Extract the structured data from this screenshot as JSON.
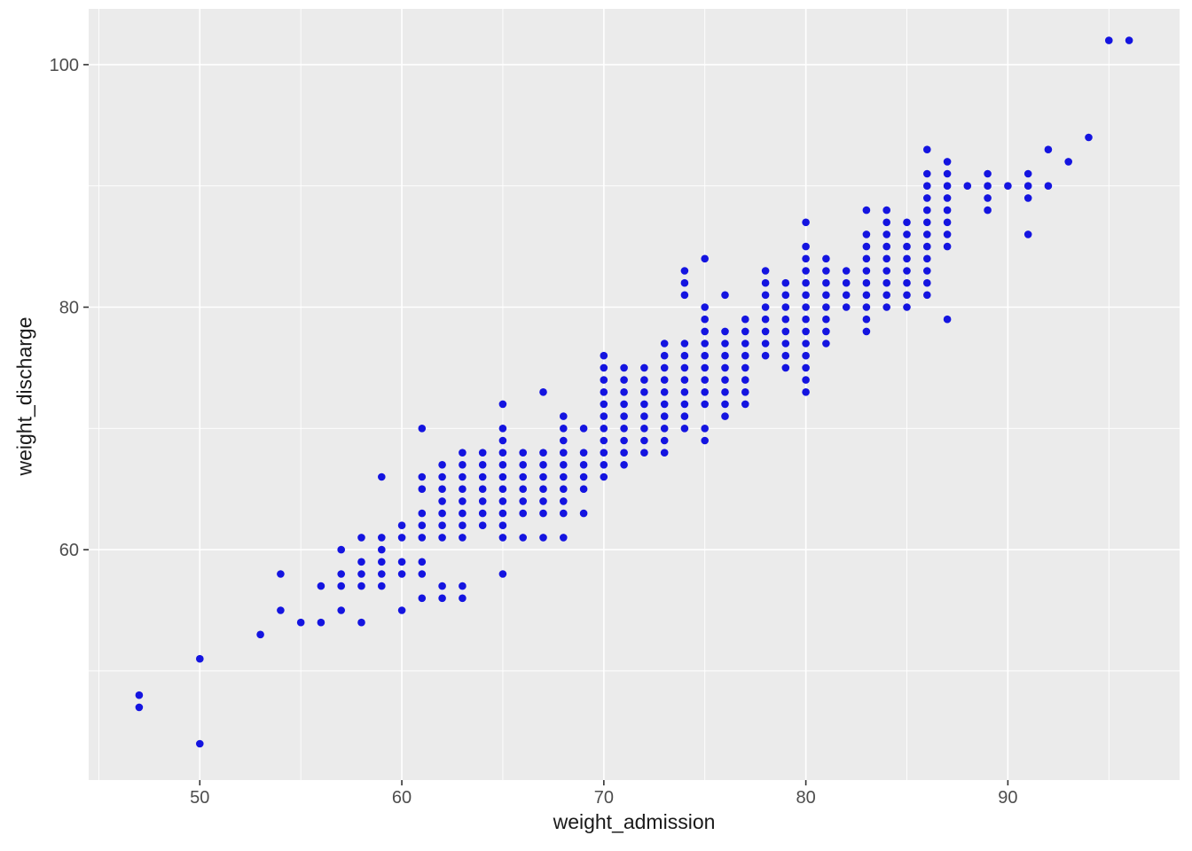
{
  "chart_data": {
    "type": "scatter",
    "title": "",
    "xlabel": "weight_admission",
    "ylabel": "weight_discharge",
    "x_ticks": [
      50,
      60,
      70,
      80,
      90
    ],
    "y_ticks": [
      60,
      80,
      100
    ],
    "x_minor_ticks": [
      45,
      55,
      65,
      75,
      85,
      95
    ],
    "y_minor_ticks": [
      50,
      70,
      90
    ],
    "xlim": [
      44.5,
      98.5
    ],
    "ylim": [
      41.0,
      104.6
    ],
    "legend": "none",
    "grid": "on",
    "panel_bg": "#EBEBEB",
    "grid_color": "#FFFFFF",
    "tick_label_color": "#4D4D4D",
    "tick_mark_color": "#333333",
    "point_color": "#1414E0",
    "points": [
      [
        47,
        48
      ],
      [
        47,
        47
      ],
      [
        50,
        51
      ],
      [
        50,
        44
      ],
      [
        53,
        53
      ],
      [
        54,
        58
      ],
      [
        54,
        55
      ],
      [
        55,
        54
      ],
      [
        56,
        57
      ],
      [
        56,
        54
      ],
      [
        57,
        60
      ],
      [
        57,
        58
      ],
      [
        57,
        57
      ],
      [
        57,
        55
      ],
      [
        58,
        61
      ],
      [
        58,
        59
      ],
      [
        58,
        58
      ],
      [
        58,
        57
      ],
      [
        58,
        54
      ],
      [
        59,
        66
      ],
      [
        59,
        61
      ],
      [
        59,
        60
      ],
      [
        59,
        59
      ],
      [
        59,
        58
      ],
      [
        59,
        57
      ],
      [
        60,
        62
      ],
      [
        60,
        61
      ],
      [
        60,
        59
      ],
      [
        60,
        58
      ],
      [
        60,
        55
      ],
      [
        61,
        70
      ],
      [
        61,
        66
      ],
      [
        61,
        65
      ],
      [
        61,
        63
      ],
      [
        61,
        62
      ],
      [
        61,
        61
      ],
      [
        61,
        59
      ],
      [
        61,
        58
      ],
      [
        61,
        56
      ],
      [
        62,
        67
      ],
      [
        62,
        66
      ],
      [
        62,
        65
      ],
      [
        62,
        64
      ],
      [
        62,
        63
      ],
      [
        62,
        62
      ],
      [
        62,
        61
      ],
      [
        62,
        57
      ],
      [
        62,
        56
      ],
      [
        63,
        68
      ],
      [
        63,
        67
      ],
      [
        63,
        66
      ],
      [
        63,
        65
      ],
      [
        63,
        64
      ],
      [
        63,
        63
      ],
      [
        63,
        62
      ],
      [
        63,
        61
      ],
      [
        63,
        57
      ],
      [
        63,
        56
      ],
      [
        64,
        68
      ],
      [
        64,
        67
      ],
      [
        64,
        66
      ],
      [
        64,
        65
      ],
      [
        64,
        64
      ],
      [
        64,
        63
      ],
      [
        64,
        62
      ],
      [
        65,
        72
      ],
      [
        65,
        70
      ],
      [
        65,
        69
      ],
      [
        65,
        68
      ],
      [
        65,
        67
      ],
      [
        65,
        66
      ],
      [
        65,
        65
      ],
      [
        65,
        64
      ],
      [
        65,
        63
      ],
      [
        65,
        62
      ],
      [
        65,
        61
      ],
      [
        65,
        58
      ],
      [
        66,
        68
      ],
      [
        66,
        67
      ],
      [
        66,
        66
      ],
      [
        66,
        65
      ],
      [
        66,
        64
      ],
      [
        66,
        63
      ],
      [
        66,
        61
      ],
      [
        67,
        73
      ],
      [
        67,
        68
      ],
      [
        67,
        67
      ],
      [
        67,
        66
      ],
      [
        67,
        65
      ],
      [
        67,
        64
      ],
      [
        67,
        63
      ],
      [
        67,
        61
      ],
      [
        68,
        71
      ],
      [
        68,
        70
      ],
      [
        68,
        69
      ],
      [
        68,
        68
      ],
      [
        68,
        67
      ],
      [
        68,
        66
      ],
      [
        68,
        65
      ],
      [
        68,
        64
      ],
      [
        68,
        63
      ],
      [
        68,
        61
      ],
      [
        69,
        70
      ],
      [
        69,
        68
      ],
      [
        69,
        67
      ],
      [
        69,
        66
      ],
      [
        69,
        65
      ],
      [
        69,
        63
      ],
      [
        70,
        76
      ],
      [
        70,
        75
      ],
      [
        70,
        74
      ],
      [
        70,
        73
      ],
      [
        70,
        72
      ],
      [
        70,
        71
      ],
      [
        70,
        70
      ],
      [
        70,
        69
      ],
      [
        70,
        68
      ],
      [
        70,
        67
      ],
      [
        70,
        66
      ],
      [
        71,
        75
      ],
      [
        71,
        74
      ],
      [
        71,
        73
      ],
      [
        71,
        72
      ],
      [
        71,
        71
      ],
      [
        71,
        70
      ],
      [
        71,
        69
      ],
      [
        71,
        68
      ],
      [
        71,
        67
      ],
      [
        72,
        75
      ],
      [
        72,
        74
      ],
      [
        72,
        73
      ],
      [
        72,
        72
      ],
      [
        72,
        71
      ],
      [
        72,
        70
      ],
      [
        72,
        69
      ],
      [
        72,
        68
      ],
      [
        73,
        77
      ],
      [
        73,
        76
      ],
      [
        73,
        75
      ],
      [
        73,
        74
      ],
      [
        73,
        73
      ],
      [
        73,
        72
      ],
      [
        73,
        71
      ],
      [
        73,
        70
      ],
      [
        73,
        69
      ],
      [
        73,
        68
      ],
      [
        74,
        83
      ],
      [
        74,
        82
      ],
      [
        74,
        81
      ],
      [
        74,
        77
      ],
      [
        74,
        76
      ],
      [
        74,
        75
      ],
      [
        74,
        74
      ],
      [
        74,
        73
      ],
      [
        74,
        72
      ],
      [
        74,
        71
      ],
      [
        74,
        70
      ],
      [
        75,
        84
      ],
      [
        75,
        80
      ],
      [
        75,
        79
      ],
      [
        75,
        78
      ],
      [
        75,
        77
      ],
      [
        75,
        76
      ],
      [
        75,
        75
      ],
      [
        75,
        74
      ],
      [
        75,
        73
      ],
      [
        75,
        72
      ],
      [
        75,
        70
      ],
      [
        75,
        69
      ],
      [
        76,
        81
      ],
      [
        76,
        78
      ],
      [
        76,
        77
      ],
      [
        76,
        76
      ],
      [
        76,
        75
      ],
      [
        76,
        74
      ],
      [
        76,
        73
      ],
      [
        76,
        72
      ],
      [
        76,
        71
      ],
      [
        77,
        79
      ],
      [
        77,
        78
      ],
      [
        77,
        77
      ],
      [
        77,
        76
      ],
      [
        77,
        75
      ],
      [
        77,
        74
      ],
      [
        77,
        73
      ],
      [
        77,
        72
      ],
      [
        78,
        83
      ],
      [
        78,
        82
      ],
      [
        78,
        81
      ],
      [
        78,
        80
      ],
      [
        78,
        79
      ],
      [
        78,
        78
      ],
      [
        78,
        77
      ],
      [
        78,
        76
      ],
      [
        79,
        82
      ],
      [
        79,
        81
      ],
      [
        79,
        80
      ],
      [
        79,
        79
      ],
      [
        79,
        78
      ],
      [
        79,
        77
      ],
      [
        79,
        76
      ],
      [
        79,
        75
      ],
      [
        80,
        87
      ],
      [
        80,
        85
      ],
      [
        80,
        84
      ],
      [
        80,
        83
      ],
      [
        80,
        82
      ],
      [
        80,
        81
      ],
      [
        80,
        80
      ],
      [
        80,
        79
      ],
      [
        80,
        78
      ],
      [
        80,
        77
      ],
      [
        80,
        76
      ],
      [
        80,
        75
      ],
      [
        80,
        74
      ],
      [
        80,
        73
      ],
      [
        81,
        84
      ],
      [
        81,
        83
      ],
      [
        81,
        82
      ],
      [
        81,
        81
      ],
      [
        81,
        80
      ],
      [
        81,
        79
      ],
      [
        81,
        78
      ],
      [
        81,
        77
      ],
      [
        82,
        83
      ],
      [
        82,
        82
      ],
      [
        82,
        81
      ],
      [
        82,
        80
      ],
      [
        83,
        88
      ],
      [
        83,
        86
      ],
      [
        83,
        85
      ],
      [
        83,
        84
      ],
      [
        83,
        83
      ],
      [
        83,
        82
      ],
      [
        83,
        81
      ],
      [
        83,
        80
      ],
      [
        83,
        79
      ],
      [
        83,
        78
      ],
      [
        84,
        88
      ],
      [
        84,
        87
      ],
      [
        84,
        86
      ],
      [
        84,
        85
      ],
      [
        84,
        84
      ],
      [
        84,
        83
      ],
      [
        84,
        82
      ],
      [
        84,
        81
      ],
      [
        84,
        80
      ],
      [
        85,
        87
      ],
      [
        85,
        86
      ],
      [
        85,
        85
      ],
      [
        85,
        84
      ],
      [
        85,
        83
      ],
      [
        85,
        82
      ],
      [
        85,
        81
      ],
      [
        85,
        80
      ],
      [
        86,
        93
      ],
      [
        86,
        91
      ],
      [
        86,
        90
      ],
      [
        86,
        89
      ],
      [
        86,
        88
      ],
      [
        86,
        87
      ],
      [
        86,
        86
      ],
      [
        86,
        85
      ],
      [
        86,
        84
      ],
      [
        86,
        83
      ],
      [
        86,
        82
      ],
      [
        86,
        81
      ],
      [
        87,
        92
      ],
      [
        87,
        91
      ],
      [
        87,
        90
      ],
      [
        87,
        89
      ],
      [
        87,
        88
      ],
      [
        87,
        87
      ],
      [
        87,
        86
      ],
      [
        87,
        85
      ],
      [
        87,
        79
      ],
      [
        88,
        90
      ],
      [
        89,
        91
      ],
      [
        89,
        90
      ],
      [
        89,
        89
      ],
      [
        89,
        88
      ],
      [
        90,
        90
      ],
      [
        91,
        91
      ],
      [
        91,
        90
      ],
      [
        91,
        89
      ],
      [
        91,
        86
      ],
      [
        92,
        93
      ],
      [
        92,
        90
      ],
      [
        93,
        92
      ],
      [
        94,
        94
      ],
      [
        95,
        102
      ],
      [
        96,
        102
      ]
    ]
  }
}
